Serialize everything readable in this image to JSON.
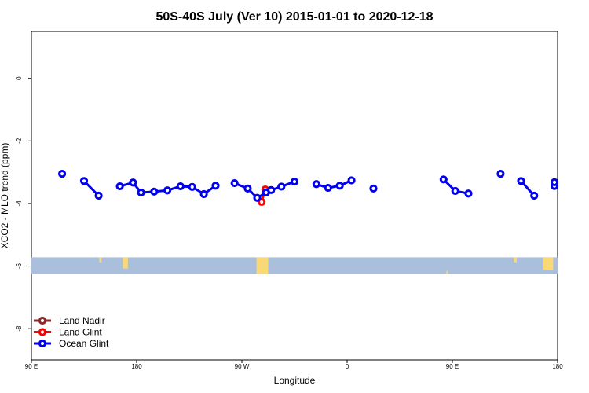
{
  "chart_data": {
    "type": "line",
    "title": "50S-40S July (Ver 10)   2015-01-01 to 2020-12-18",
    "xlabel": "Longitude",
    "ylabel": "XCO2 - MLO trend (ppm)",
    "xlim": [
      90,
      450
    ],
    "ylim": [
      -9,
      1.5
    ],
    "x_ticks": [
      {
        "value": 90,
        "label": "90 E"
      },
      {
        "value": 162,
        "label": "180"
      },
      {
        "value": 234,
        "label": "90 W"
      },
      {
        "value": 306,
        "label": "0"
      },
      {
        "value": 378,
        "label": "90 E"
      },
      {
        "value": 450,
        "label": "180"
      }
    ],
    "y_ticks": [
      {
        "value": 0,
        "label": "0"
      },
      {
        "value": -2,
        "label": "-2"
      },
      {
        "value": -4,
        "label": "-4"
      },
      {
        "value": -6,
        "label": "-6"
      },
      {
        "value": -8,
        "label": "-8"
      }
    ],
    "grid": false,
    "legend_position": "bottom-left",
    "land_band": {
      "y_top": -5.72,
      "y_bottom": -6.25,
      "ocean_color": "#a9bfdc",
      "land_color": "#f9d977"
    },
    "land_patches": [
      {
        "x": [
          136.5,
          138
        ],
        "y": [
          -5.72,
          -5.88
        ]
      },
      {
        "x": [
          152.5,
          156
        ],
        "y": [
          -5.72,
          -6.08
        ]
      },
      {
        "x": [
          244,
          252
        ],
        "y": [
          -5.72,
          -6.25
        ]
      },
      {
        "x": [
          374,
          375
        ],
        "y": [
          -6.15,
          -6.25
        ]
      },
      {
        "x": [
          420,
          422
        ],
        "y": [
          -5.72,
          -5.88
        ]
      },
      {
        "x": [
          440,
          447
        ],
        "y": [
          -5.72,
          -6.12
        ]
      }
    ],
    "series": [
      {
        "name": "Land Nadir",
        "color": "#8b2a2a",
        "segments": []
      },
      {
        "name": "Land Glint",
        "color": "#ff0000",
        "segments": [
          [
            [
              247.5,
              -3.95
            ],
            [
              250,
              -3.55
            ]
          ]
        ]
      },
      {
        "name": "Ocean Glint",
        "color": "#0000ee",
        "segments": [
          [
            [
              111,
              -3.05
            ]
          ],
          [
            [
              126,
              -3.28
            ],
            [
              136,
              -3.75
            ]
          ],
          [
            [
              150.5,
              -3.45
            ],
            [
              159.5,
              -3.33
            ],
            [
              165,
              -3.65
            ],
            [
              174,
              -3.62
            ],
            [
              183,
              -3.58
            ],
            [
              192,
              -3.45
            ],
            [
              200,
              -3.47
            ],
            [
              208,
              -3.7
            ],
            [
              216,
              -3.43
            ]
          ],
          [
            [
              229,
              -3.35
            ],
            [
              238,
              -3.52
            ],
            [
              244.5,
              -3.82
            ],
            [
              250.5,
              -3.65
            ],
            [
              254,
              -3.57
            ],
            [
              261,
              -3.46
            ],
            [
              270,
              -3.3
            ]
          ],
          [
            [
              285,
              -3.38
            ],
            [
              293,
              -3.5
            ],
            [
              301,
              -3.43
            ],
            [
              309,
              -3.26
            ]
          ],
          [
            [
              324,
              -3.52
            ]
          ],
          [
            [
              372,
              -3.23
            ],
            [
              380,
              -3.6
            ],
            [
              389,
              -3.68
            ]
          ],
          [
            [
              411,
              -3.05
            ]
          ],
          [
            [
              425,
              -3.28
            ],
            [
              434,
              -3.75
            ]
          ],
          [
            [
              448,
              -3.44
            ],
            [
              457,
              -3.32
            ]
          ]
        ]
      }
    ]
  }
}
